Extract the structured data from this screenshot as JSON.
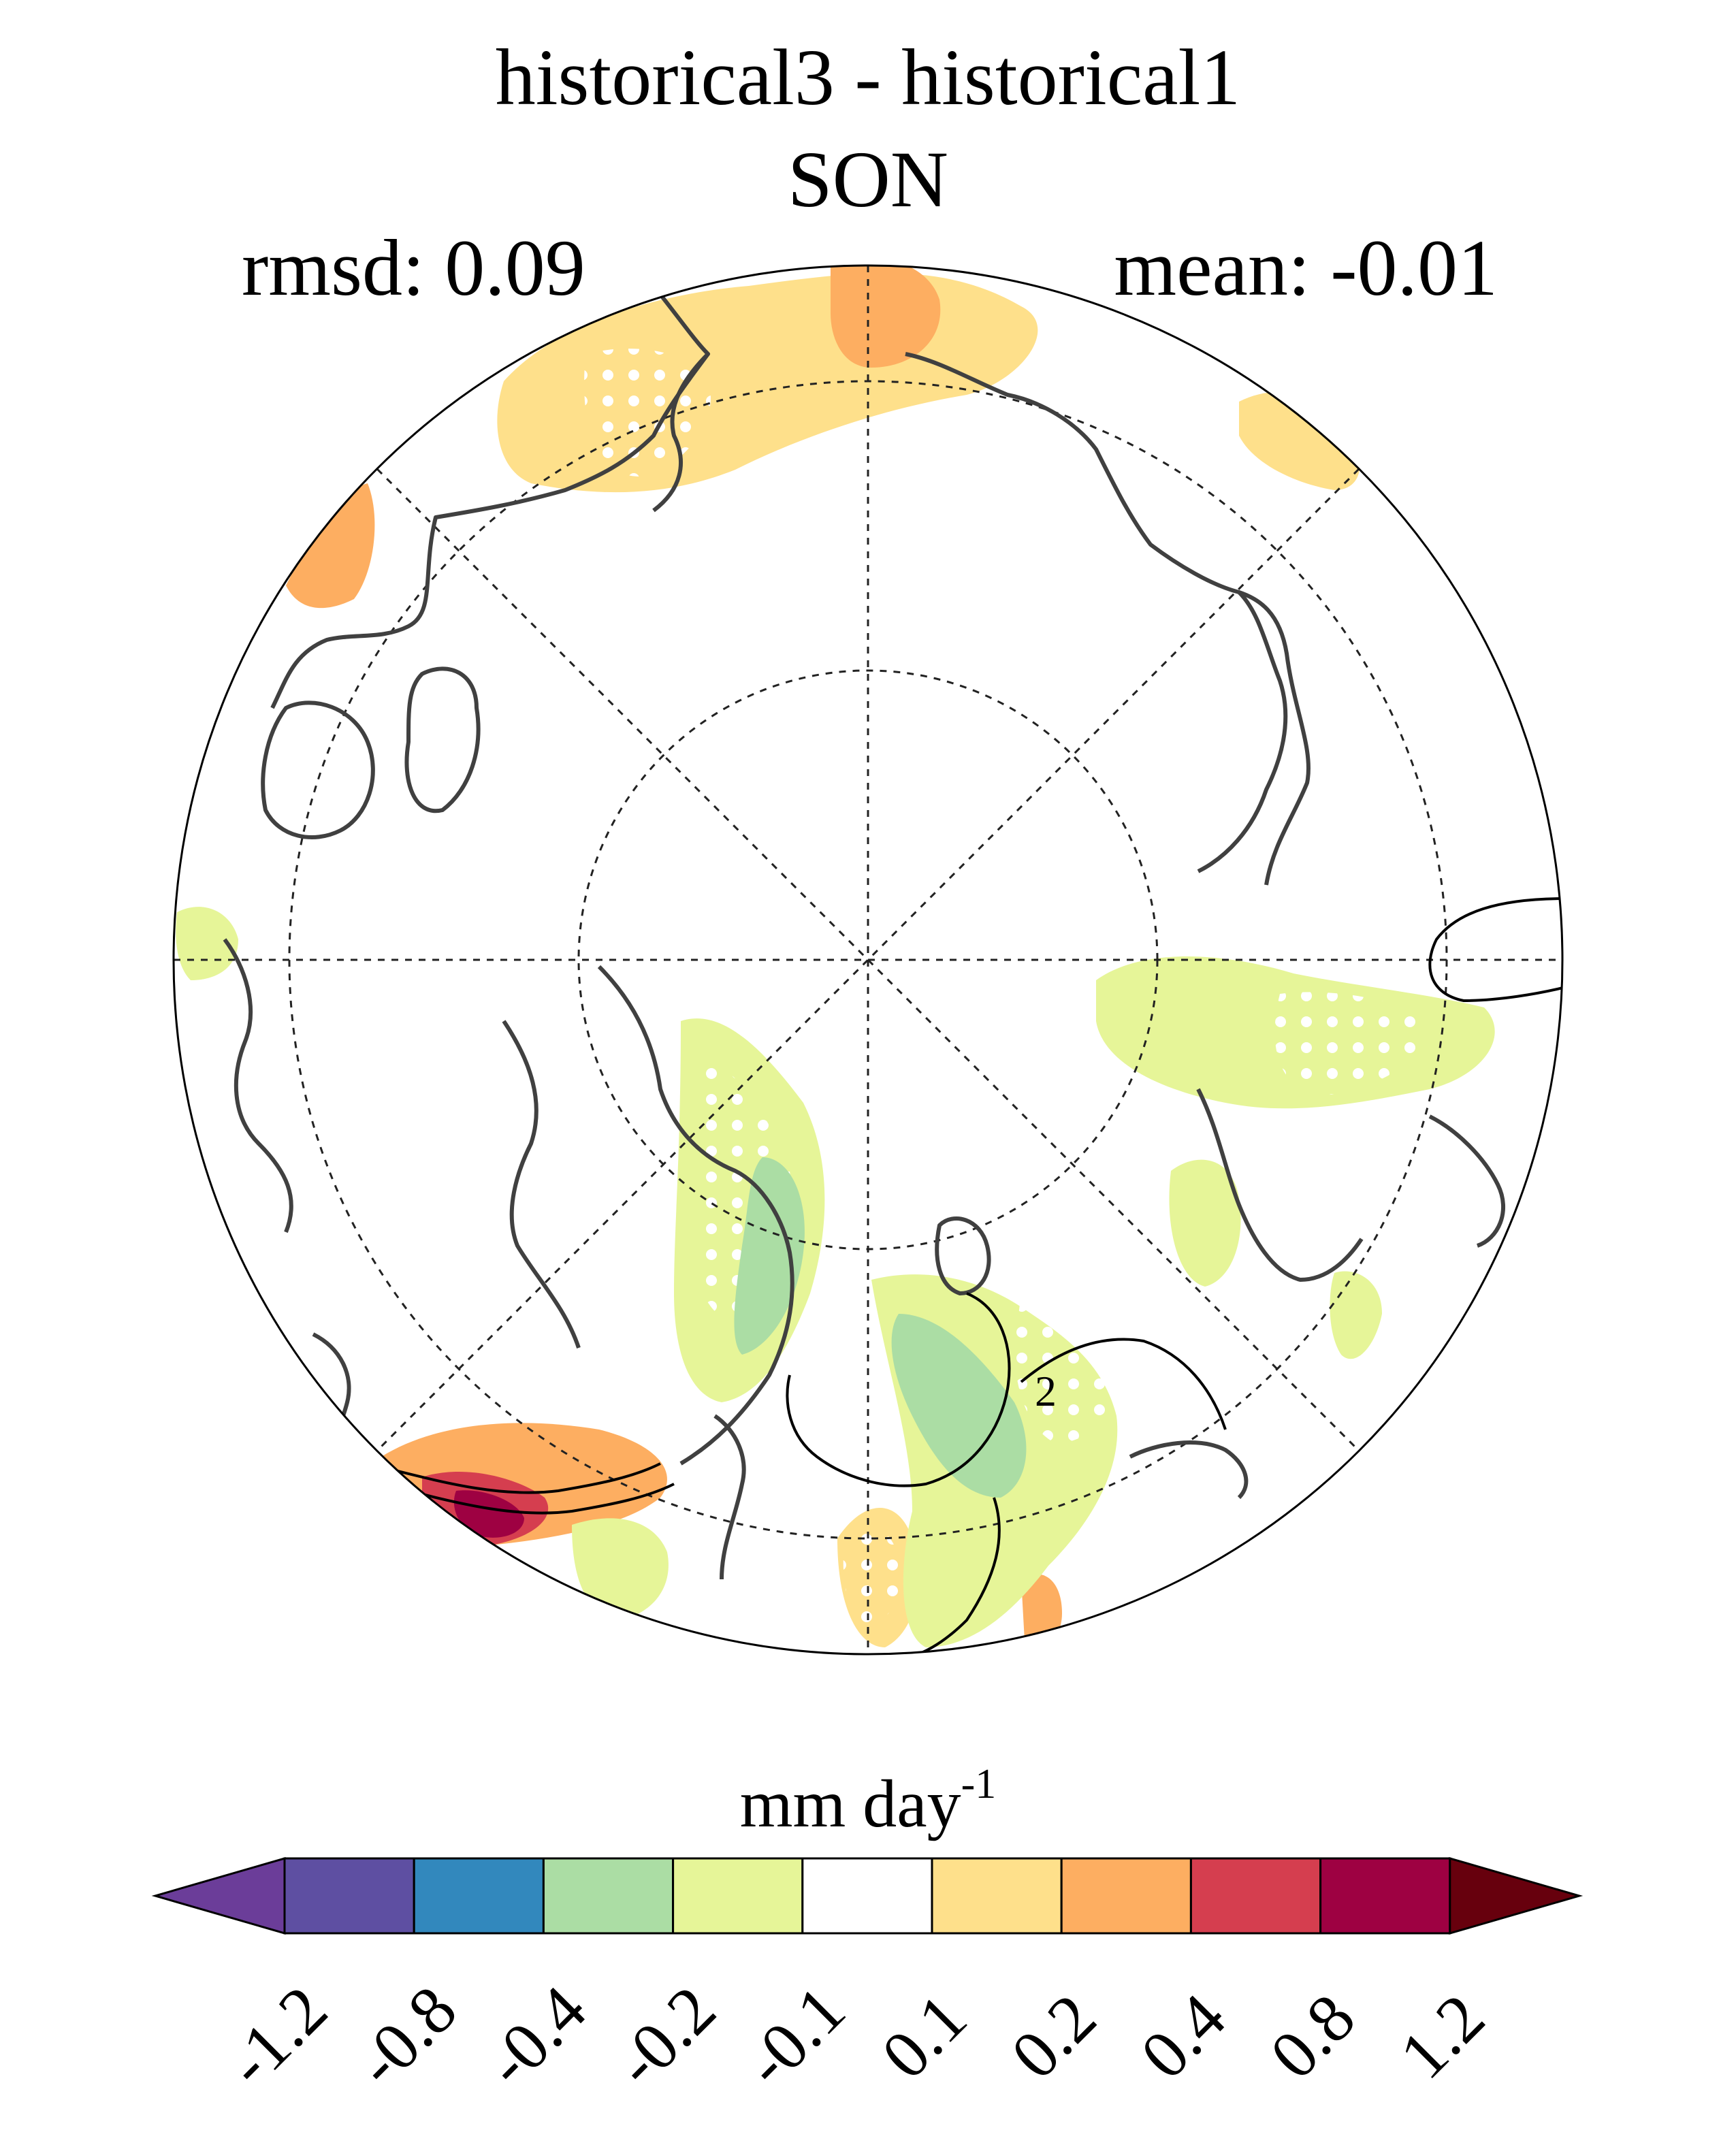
{
  "title": {
    "line1": "historical3 - historical1",
    "line2": "SON"
  },
  "stats": {
    "rmsd": "rmsd: 0.09",
    "mean": "mean: -0.01"
  },
  "map": {
    "projection": "north polar stereographic",
    "contour_label": "2",
    "colors": {
      "land": "#404040",
      "grid": "#222222"
    }
  },
  "colorbar": {
    "unit_base": "mm day",
    "unit_exp": "-1",
    "labels": [
      "-1.2",
      "-0.8",
      "-0.4",
      "-0.2",
      "-0.1",
      "0.1",
      "0.2",
      "0.4",
      "0.8",
      "1.2"
    ],
    "colors": [
      "#5e4fa2",
      "#3288bd",
      "#abdda4",
      "#e6f598",
      "#ffffff",
      "#fee08b",
      "#fdae61",
      "#d53e4f",
      "#9e0142"
    ],
    "under_color": "#6b3d99",
    "over_color": "#67000d"
  }
}
